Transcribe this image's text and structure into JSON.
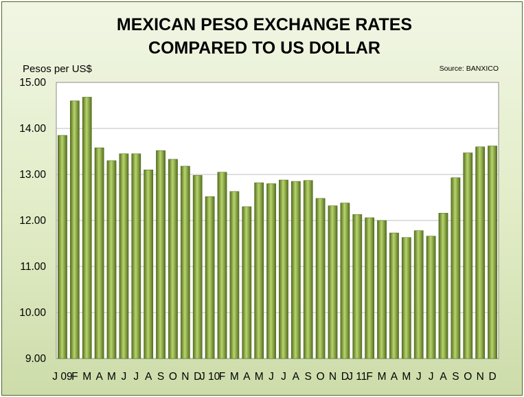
{
  "chart_data": {
    "type": "bar",
    "title": [
      "MEXICAN PESO EXCHANGE RATES",
      "COMPARED TO US DOLLAR"
    ],
    "ylabel": "Pesos per US$",
    "source": "Source: BANXICO",
    "ylim": [
      9.0,
      15.0
    ],
    "yticks": [
      "9.00",
      "10.00",
      "11.00",
      "12.00",
      "13.00",
      "14.00",
      "15.00"
    ],
    "grid": true,
    "categories": [
      "J 09",
      "F",
      "M",
      "A",
      "M",
      "J",
      "J",
      "A",
      "S",
      "O",
      "N",
      "D",
      "J 10",
      "F",
      "M",
      "A",
      "M",
      "J",
      "J",
      "A",
      "S",
      "O",
      "N",
      "D",
      "J 11",
      "F",
      "M",
      "A",
      "M",
      "J",
      "J",
      "A",
      "S",
      "O",
      "N",
      "D"
    ],
    "values": [
      13.85,
      14.6,
      14.68,
      13.58,
      13.3,
      13.45,
      13.45,
      13.1,
      13.52,
      13.33,
      13.18,
      12.98,
      12.52,
      13.05,
      12.63,
      12.3,
      12.82,
      12.8,
      12.88,
      12.85,
      12.87,
      12.48,
      12.32,
      12.38,
      12.13,
      12.06,
      12.0,
      11.73,
      11.63,
      11.78,
      11.66,
      12.16,
      12.93,
      13.47,
      13.6,
      13.62
    ],
    "colors": {
      "bar_dark": "#55701f",
      "bar_light": "#b8d46c",
      "plot_bg": "#ffffff",
      "grid": "#bfbfbf"
    }
  }
}
